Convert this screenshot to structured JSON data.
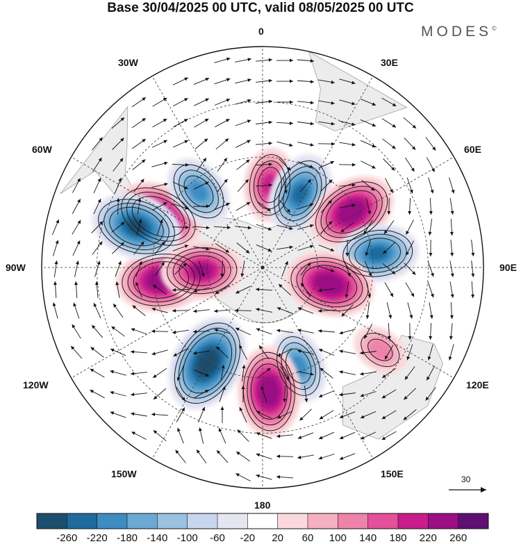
{
  "title": "Base 30/04/2025 00 UTC, valid 08/05/2025 00 UTC",
  "logo": {
    "text": "MODES",
    "mark": "©"
  },
  "longitude_labels": {
    "n0": "0",
    "e30": "30E",
    "e60": "60E",
    "e90": "90E",
    "e120": "120E",
    "e150": "150E",
    "s180": "180",
    "w150": "150W",
    "w120": "120W",
    "w90": "90W",
    "w60": "60W",
    "w30": "30W"
  },
  "reference_vector": {
    "value": "30"
  },
  "colorbar": {
    "colors": [
      "#1d4e6e",
      "#1f6a9c",
      "#3d8cc2",
      "#6aa9d3",
      "#9bc1e0",
      "#c7d6ec",
      "#e6e6f3",
      "#ffffff",
      "#fad9dc",
      "#f5b0c2",
      "#ee83aa",
      "#e4509a",
      "#c81d8a",
      "#9b0f84",
      "#5e0f74"
    ],
    "labels": [
      "-260",
      "-220",
      "-180",
      "-140",
      "-100",
      "-60",
      "-20",
      "20",
      "60",
      "100",
      "140",
      "180",
      "220",
      "260"
    ]
  },
  "anomaly_centers": [
    {
      "sign": "positive",
      "intensity": 220,
      "lon": -64,
      "lat": 48
    },
    {
      "sign": "negative",
      "intensity": 140,
      "lon": -40,
      "lat": 54
    },
    {
      "sign": "positive",
      "intensity": 140,
      "lon": 5,
      "lat": 60
    },
    {
      "sign": "negative",
      "intensity": 180,
      "lon": 27,
      "lat": 60
    },
    {
      "sign": "positive",
      "intensity": 220,
      "lon": 58,
      "lat": 52
    },
    {
      "sign": "negative",
      "intensity": 180,
      "lon": 83,
      "lat": 48
    },
    {
      "sign": "positive",
      "intensity": 220,
      "lon": 104,
      "lat": 65
    },
    {
      "sign": "positive",
      "intensity": 60,
      "lon": 125,
      "lat": 38
    },
    {
      "sign": "negative",
      "intensity": 140,
      "lon": 160,
      "lat": 52
    },
    {
      "sign": "positive",
      "intensity": 220,
      "lon": 177,
      "lat": 45
    },
    {
      "sign": "negative",
      "intensity": 260,
      "lon": -150,
      "lat": 50
    },
    {
      "sign": "positive",
      "intensity": 220,
      "lon": -97,
      "lat": 53
    },
    {
      "sign": "negative",
      "intensity": 220,
      "lon": -72,
      "lat": 42
    },
    {
      "sign": "positive",
      "intensity": 180,
      "lon": -93,
      "lat": 68
    }
  ]
}
